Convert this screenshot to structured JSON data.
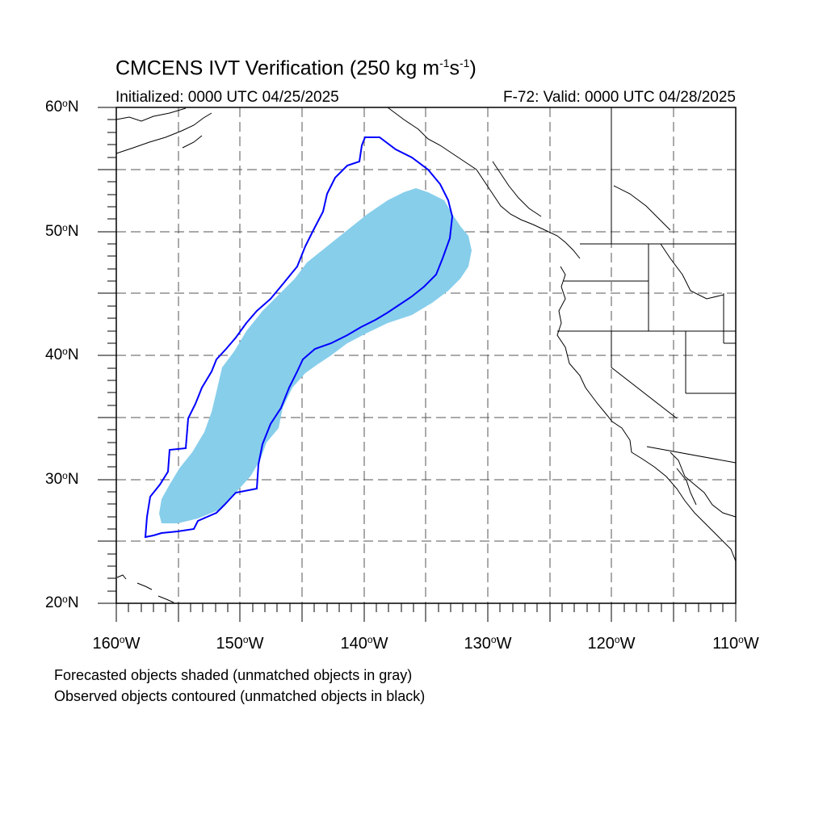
{
  "title": {
    "main": "CMCENS IVT Verification (250 kg m",
    "sup1": "-1",
    "mid": "s",
    "sup2": "-1",
    "end": ")"
  },
  "subtitle": {
    "left": "Initialized: 0000 UTC 04/25/2025",
    "right": "F-72: Valid: 0000 UTC 04/28/2025"
  },
  "axes": {
    "lat_labels": [
      {
        "deg": "60",
        "hem": "N"
      },
      {
        "deg": "50",
        "hem": "N"
      },
      {
        "deg": "40",
        "hem": "N"
      },
      {
        "deg": "30",
        "hem": "N"
      },
      {
        "deg": "20",
        "hem": "N"
      }
    ],
    "lon_labels": [
      {
        "deg": "160",
        "hem": "W"
      },
      {
        "deg": "150",
        "hem": "W"
      },
      {
        "deg": "140",
        "hem": "W"
      },
      {
        "deg": "130",
        "hem": "W"
      },
      {
        "deg": "120",
        "hem": "W"
      },
      {
        "deg": "110",
        "hem": "W"
      }
    ]
  },
  "notes": {
    "forecast": "Forecasted objects shaded (unmatched objects in gray)",
    "observed": "Observed objects contoured (unmatched objects in black)"
  },
  "colors": {
    "forecast_fill": "#87ceeb",
    "observed_contour": "#0000ff",
    "coastline": "#000000",
    "grid": "#555555"
  }
}
